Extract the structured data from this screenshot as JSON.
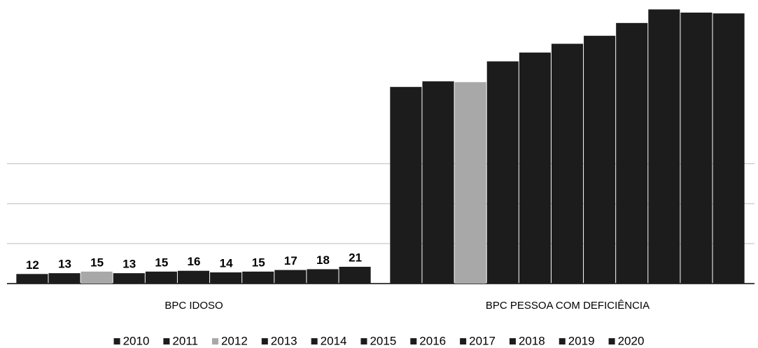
{
  "chart_data": {
    "type": "bar",
    "categories": [
      "BPC IDOSO",
      "BPC PESSOA COM DEFICIÊNCIA"
    ],
    "series": [
      {
        "name": "2010",
        "color": "#1c1c1c",
        "values": [
          12,
          246
        ]
      },
      {
        "name": "2011",
        "color": "#1c1c1c",
        "values": [
          13,
          253
        ]
      },
      {
        "name": "2012",
        "color": "#a8a8a8",
        "values": [
          15,
          252
        ]
      },
      {
        "name": "2013",
        "color": "#1c1c1c",
        "values": [
          13,
          278
        ]
      },
      {
        "name": "2014",
        "color": "#1c1c1c",
        "values": [
          15,
          289
        ]
      },
      {
        "name": "2015",
        "color": "#1c1c1c",
        "values": [
          16,
          300
        ]
      },
      {
        "name": "2016",
        "color": "#1c1c1c",
        "values": [
          14,
          310
        ]
      },
      {
        "name": "2017",
        "color": "#1c1c1c",
        "values": [
          15,
          326
        ]
      },
      {
        "name": "2018",
        "color": "#1c1c1c",
        "values": [
          17,
          343
        ]
      },
      {
        "name": "2019",
        "color": "#1c1c1c",
        "values": [
          18,
          339
        ]
      },
      {
        "name": "2020",
        "color": "#1c1c1c",
        "values": [
          21,
          338
        ]
      }
    ],
    "show_value_labels": [
      true,
      false
    ],
    "ylim": [
      0,
      346
    ],
    "yticks": [
      0,
      50,
      100,
      150
    ],
    "grid": true,
    "legend": "bottom"
  }
}
